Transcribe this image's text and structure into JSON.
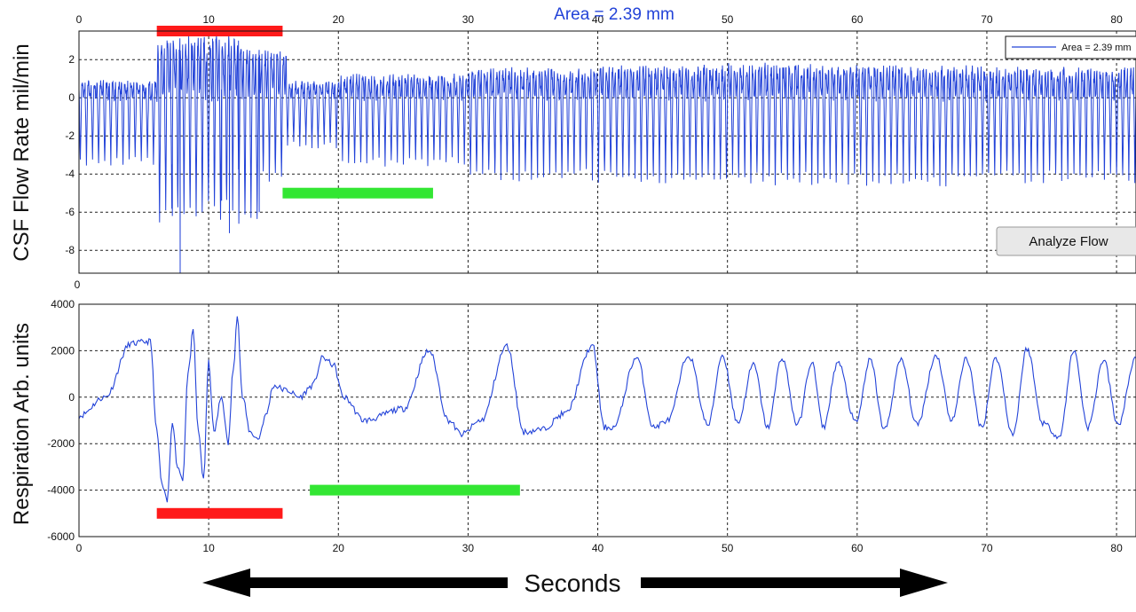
{
  "colors": {
    "trace": "#2343d8",
    "red_bar": "#ff1a1a",
    "green_bar": "#33e633",
    "grid": "#222222",
    "title": "#2343d8"
  },
  "title": "Area = 2.39 mm",
  "legend_label": "Area = 2.39 mm",
  "button_label": "Analyze Flow",
  "xlabel": "Seconds",
  "chart_data": [
    {
      "type": "line",
      "title": "Area = 2.39 mm",
      "xlabel": "",
      "ylabel": "CSF Flow Rate mil/min",
      "xlim": [
        0,
        81.5
      ],
      "ylim": [
        -9.2,
        3.5
      ],
      "xticks": [
        0,
        10,
        20,
        30,
        40,
        50,
        60,
        70,
        80
      ],
      "xtick_labels": [
        "0",
        "10",
        "20",
        "30",
        "40",
        "50",
        "60",
        "70",
        "80"
      ],
      "yticks": [
        2,
        0,
        -2,
        -4,
        -6,
        -8
      ],
      "ytick_labels": [
        "2",
        "0",
        "-2",
        "-4",
        "-6",
        "-8"
      ],
      "extra_tick_labels": [
        {
          "text": "0",
          "x": 0,
          "y": -9.2
        }
      ],
      "grid": true,
      "legend": {
        "position": "top-right",
        "entries": [
          "Area = 2.39 mm"
        ]
      },
      "series": [
        {
          "name": "Area = 2.39 mm",
          "kind": "oscillation",
          "cycle_s": 0.47,
          "segments": [
            {
              "x0": 0,
              "x1": 6,
              "peak": 0.7,
              "trough": -3.4
            },
            {
              "x0": 6,
              "x1": 8,
              "peak": 2.7,
              "trough": -6.3
            },
            {
              "x0": 8,
              "x1": 10,
              "peak": 2.8,
              "trough": -6.0
            },
            {
              "x0": 10,
              "x1": 12,
              "peak": 3.0,
              "trough": -6.0
            },
            {
              "x0": 12,
              "x1": 14,
              "peak": 2.4,
              "trough": -6.2
            },
            {
              "x0": 14,
              "x1": 16,
              "peak": 2.2,
              "trough": -4.3
            },
            {
              "x0": 16,
              "x1": 20,
              "peak": 0.7,
              "trough": -2.5
            },
            {
              "x0": 20,
              "x1": 30,
              "peak": 1.0,
              "trough": -3.4
            },
            {
              "x0": 30,
              "x1": 40,
              "peak": 1.3,
              "trough": -4.1
            },
            {
              "x0": 40,
              "x1": 50,
              "peak": 1.4,
              "trough": -4.2
            },
            {
              "x0": 50,
              "x1": 60,
              "peak": 1.5,
              "trough": -4.3
            },
            {
              "x0": 60,
              "x1": 70,
              "peak": 1.4,
              "trough": -4.4
            },
            {
              "x0": 70,
              "x1": 81.5,
              "peak": 1.3,
              "trough": -4.2
            }
          ],
          "spikes": [
            {
              "x": 7.2,
              "y": -6.2
            },
            {
              "x": 7.8,
              "y": -9.2
            },
            {
              "x": 9.5,
              "y": -6.0
            },
            {
              "x": 10.3,
              "y": 3.1
            },
            {
              "x": 11.0,
              "y": -5.4
            },
            {
              "x": 11.6,
              "y": -7.1
            },
            {
              "x": 12.3,
              "y": 3.0
            },
            {
              "x": 13.9,
              "y": -6.0
            }
          ]
        }
      ],
      "annotations": [
        {
          "kind": "bar",
          "color": "red",
          "x0": 6.0,
          "x1": 15.7,
          "y": 3.5
        },
        {
          "kind": "bar",
          "color": "green",
          "x0": 15.7,
          "x1": 27.3,
          "y": -5.0
        }
      ]
    },
    {
      "type": "line",
      "title": "",
      "xlabel": "Seconds",
      "ylabel": "Respiration Arb. units",
      "xlim": [
        0,
        81.5
      ],
      "ylim": [
        -6000,
        4000
      ],
      "xticks": [
        0,
        10,
        20,
        30,
        40,
        50,
        60,
        70,
        80
      ],
      "xtick_labels": [
        "0",
        "10",
        "20",
        "30",
        "40",
        "50",
        "60",
        "70",
        "80"
      ],
      "yticks": [
        4000,
        2000,
        0,
        -2000,
        -4000,
        -6000
      ],
      "ytick_labels": [
        "4000",
        "2000",
        "0",
        "-2000",
        "-4000",
        "-6000"
      ],
      "grid": true,
      "series": [
        {
          "kind": "polyline",
          "x": [
            0,
            2,
            4,
            5.5,
            6,
            6.4,
            6.8,
            7.2,
            7.6,
            8.0,
            8.4,
            8.8,
            9.2,
            9.6,
            10.0,
            10.4,
            11.0,
            11.5,
            11.9,
            12.2,
            12.6,
            13.2,
            13.8,
            14.4,
            15.0,
            16.0,
            17.0,
            18.0,
            18.8,
            19.6,
            20.4,
            22.0,
            25.0,
            27.0,
            28.5,
            29.5,
            31.0,
            33.0,
            34.3,
            35.6,
            37.5,
            39.6,
            40.5,
            41.2,
            43.0,
            44.3,
            45.4,
            47.0,
            48.5,
            49.6,
            50.8,
            52.0,
            53.1,
            54.2,
            55.4,
            56.5,
            57.4,
            58.5,
            59.9,
            61.0,
            62.1,
            63.4,
            64.6,
            66.1,
            67.3,
            68.4,
            69.6,
            70.7,
            72.0,
            73.1,
            74.3,
            75.6,
            76.7,
            77.8,
            79.0,
            80.1,
            81.5
          ],
          "y": [
            -800,
            0,
            2300,
            2400,
            -1500,
            -3800,
            -4500,
            -1000,
            -3000,
            -3500,
            1000,
            2800,
            -1500,
            -3500,
            1500,
            -1500,
            0,
            -2000,
            1200,
            3600,
            0,
            -1500,
            -1800,
            -800,
            500,
            300,
            0,
            500,
            1700,
            1400,
            0,
            -1000,
            -500,
            2000,
            -1000,
            -1600,
            -1000,
            2200,
            -1500,
            -1400,
            -700,
            2200,
            -1300,
            -1300,
            1700,
            -1300,
            -1000,
            1800,
            -1200,
            1800,
            -1100,
            1400,
            -1300,
            1700,
            -1200,
            1500,
            -1300,
            1500,
            -1100,
            1600,
            -1400,
            1600,
            -1200,
            1800,
            -1000,
            1700,
            -1300,
            1700,
            -1600,
            2100,
            -1100,
            -1700,
            2000,
            -1300,
            1600,
            -1200,
            1700
          ]
        }
      ],
      "annotations": [
        {
          "kind": "bar",
          "color": "red",
          "x0": 6.0,
          "x1": 15.7,
          "y": -5000
        },
        {
          "kind": "bar",
          "color": "green",
          "x0": 17.8,
          "x1": 34.0,
          "y": -4000
        }
      ]
    }
  ]
}
